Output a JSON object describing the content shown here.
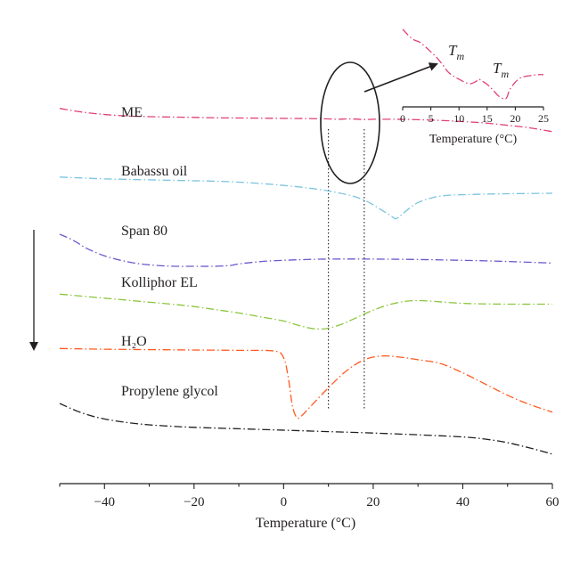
{
  "chart_data": [
    {
      "type": "line",
      "title": "",
      "xlabel": "Temperature (°C)",
      "ylabel": "",
      "xlim": [
        -50,
        60
      ],
      "x_ticks": [
        "−40",
        "−20",
        "0",
        "20",
        "40",
        "60"
      ],
      "grid": false,
      "arrow_direction": "down",
      "series": [
        {
          "name": "ME",
          "color": "#e0407a",
          "points": [
            [
              -50,
              0.72
            ],
            [
              -46,
              0.64
            ],
            [
              -42,
              0.58
            ],
            [
              -38,
              0.54
            ],
            [
              -34,
              0.515
            ],
            [
              -30,
              0.5
            ],
            [
              -25,
              0.49
            ],
            [
              -20,
              0.48
            ],
            [
              -15,
              0.47
            ],
            [
              -10,
              0.465
            ],
            [
              -5,
              0.46
            ],
            [
              0,
              0.455
            ],
            [
              5,
              0.45
            ],
            [
              10,
              0.44
            ],
            [
              12,
              0.43
            ],
            [
              14,
              0.44
            ],
            [
              16,
              0.435
            ],
            [
              18,
              0.425
            ],
            [
              20,
              0.43
            ],
            [
              25,
              0.43
            ],
            [
              30,
              0.42
            ],
            [
              35,
              0.4
            ],
            [
              40,
              0.37
            ],
            [
              45,
              0.33
            ],
            [
              50,
              0.27
            ],
            [
              55,
              0.2
            ],
            [
              60,
              0.1
            ]
          ]
        },
        {
          "name": "Babassu oil",
          "color": "#7cc4e0",
          "points": [
            [
              -50,
              0.6
            ],
            [
              -45,
              0.58
            ],
            [
              -40,
              0.56
            ],
            [
              -35,
              0.55
            ],
            [
              -30,
              0.54
            ],
            [
              -25,
              0.53
            ],
            [
              -20,
              0.52
            ],
            [
              -15,
              0.51
            ],
            [
              -10,
              0.49
            ],
            [
              -5,
              0.46
            ],
            [
              0,
              0.42
            ],
            [
              5,
              0.37
            ],
            [
              10,
              0.3
            ],
            [
              15,
              0.2
            ],
            [
              18,
              0.1
            ],
            [
              20,
              0.0
            ],
            [
              22,
              -0.12
            ],
            [
              24,
              -0.24
            ],
            [
              25,
              -0.3
            ],
            [
              26,
              -0.24
            ],
            [
              28,
              -0.08
            ],
            [
              30,
              0.05
            ],
            [
              33,
              0.15
            ],
            [
              36,
              0.2
            ],
            [
              40,
              0.22
            ],
            [
              50,
              0.24
            ],
            [
              60,
              0.25
            ]
          ]
        },
        {
          "name": "Span 80",
          "color": "#6a5acd",
          "points": [
            [
              -50,
              0.6
            ],
            [
              -47,
              0.45
            ],
            [
              -44,
              0.25
            ],
            [
              -40,
              0.06
            ],
            [
              -36,
              -0.06
            ],
            [
              -32,
              -0.14
            ],
            [
              -28,
              -0.18
            ],
            [
              -24,
              -0.2
            ],
            [
              -20,
              -0.2
            ],
            [
              -16,
              -0.2
            ],
            [
              -12,
              -0.18
            ],
            [
              -10,
              -0.14
            ],
            [
              -5,
              -0.08
            ],
            [
              0,
              -0.05
            ],
            [
              5,
              -0.03
            ],
            [
              10,
              -0.02
            ],
            [
              20,
              -0.02
            ],
            [
              30,
              -0.03
            ],
            [
              40,
              -0.05
            ],
            [
              50,
              -0.08
            ],
            [
              60,
              -0.12
            ]
          ]
        },
        {
          "name": "Kolliphor EL",
          "color": "#8cc63f",
          "points": [
            [
              -50,
              0.55
            ],
            [
              -45,
              0.5
            ],
            [
              -40,
              0.45
            ],
            [
              -35,
              0.4
            ],
            [
              -30,
              0.35
            ],
            [
              -25,
              0.3
            ],
            [
              -20,
              0.24
            ],
            [
              -15,
              0.16
            ],
            [
              -10,
              0.08
            ],
            [
              -5,
              -0.02
            ],
            [
              0,
              -0.12
            ],
            [
              3,
              -0.22
            ],
            [
              6,
              -0.3
            ],
            [
              8,
              -0.32
            ],
            [
              10,
              -0.3
            ],
            [
              13,
              -0.2
            ],
            [
              16,
              -0.05
            ],
            [
              20,
              0.15
            ],
            [
              24,
              0.3
            ],
            [
              28,
              0.38
            ],
            [
              32,
              0.38
            ],
            [
              40,
              0.32
            ],
            [
              50,
              0.3
            ],
            [
              60,
              0.3
            ]
          ]
        },
        {
          "name": "H₂O",
          "color": "#ff5a1f",
          "points": [
            [
              -50,
              0.35
            ],
            [
              -40,
              0.33
            ],
            [
              -30,
              0.32
            ],
            [
              -20,
              0.31
            ],
            [
              -10,
              0.3
            ],
            [
              -2,
              0.28
            ],
            [
              0,
              0.1
            ],
            [
              1,
              -0.4
            ],
            [
              2,
              -1.2
            ],
            [
              3,
              -1.5
            ],
            [
              4,
              -1.45
            ],
            [
              6,
              -1.2
            ],
            [
              10,
              -0.7
            ],
            [
              14,
              -0.25
            ],
            [
              18,
              0.05
            ],
            [
              22,
              0.15
            ],
            [
              26,
              0.12
            ],
            [
              30,
              0.05
            ],
            [
              35,
              -0.05
            ],
            [
              40,
              -0.3
            ],
            [
              45,
              -0.6
            ],
            [
              50,
              -0.9
            ],
            [
              55,
              -1.15
            ],
            [
              60,
              -1.35
            ]
          ]
        },
        {
          "name": "Propylene glycol",
          "color": "#231f20",
          "points": [
            [
              -50,
              0.6
            ],
            [
              -46,
              0.38
            ],
            [
              -42,
              0.22
            ],
            [
              -38,
              0.12
            ],
            [
              -34,
              0.05
            ],
            [
              -30,
              0.0
            ],
            [
              -25,
              -0.04
            ],
            [
              -20,
              -0.07
            ],
            [
              -10,
              -0.11
            ],
            [
              0,
              -0.15
            ],
            [
              10,
              -0.19
            ],
            [
              20,
              -0.23
            ],
            [
              30,
              -0.28
            ],
            [
              40,
              -0.34
            ],
            [
              45,
              -0.4
            ],
            [
              50,
              -0.5
            ],
            [
              55,
              -0.65
            ],
            [
              60,
              -0.82
            ]
          ]
        }
      ],
      "reference_lines_x": [
        10,
        18
      ]
    },
    {
      "type": "line",
      "title": "",
      "xlabel": "Temperature (°C)",
      "ylabel": "",
      "xlim": [
        0,
        25
      ],
      "x_ticks": [
        "0",
        "5",
        "10",
        "15",
        "20",
        "25"
      ],
      "annotations": [
        "T",
        "m",
        "T",
        "m"
      ],
      "series": [
        {
          "name": "",
          "color": "#e0407a",
          "points": [
            [
              0,
              2.6
            ],
            [
              1,
              2.2
            ],
            [
              2,
              1.9
            ],
            [
              3,
              1.75
            ],
            [
              4,
              1.45
            ],
            [
              5,
              1.1
            ],
            [
              6,
              0.75
            ],
            [
              7,
              0.3
            ],
            [
              8,
              -0.2
            ],
            [
              9,
              -0.5
            ],
            [
              10,
              -0.7
            ],
            [
              11,
              -0.9
            ],
            [
              12,
              -1.0
            ],
            [
              13,
              -0.85
            ],
            [
              13.5,
              -0.7
            ],
            [
              14,
              -0.8
            ],
            [
              15,
              -1.05
            ],
            [
              16,
              -1.4
            ],
            [
              17,
              -1.8
            ],
            [
              18,
              -2.0
            ],
            [
              18.5,
              -1.9
            ],
            [
              19,
              -1.4
            ],
            [
              20,
              -0.9
            ],
            [
              21,
              -0.6
            ],
            [
              22,
              -0.5
            ],
            [
              23,
              -0.45
            ],
            [
              24,
              -0.4
            ],
            [
              25,
              -0.4
            ]
          ]
        }
      ]
    }
  ]
}
